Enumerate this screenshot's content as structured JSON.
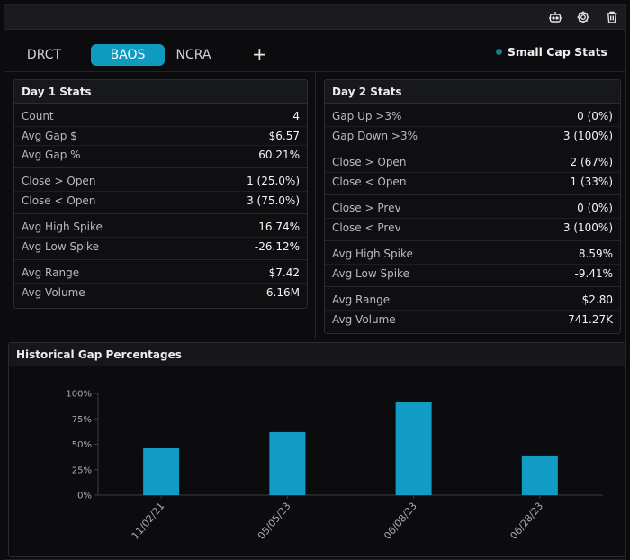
{
  "tabs": [
    "DRCT",
    "BAOS",
    "NCRA"
  ],
  "active_tab": "BAOS",
  "add_tab_label": "+",
  "scanner_label": "Small Cap Stats",
  "colors": {
    "accent": "#0f9ac0",
    "bar": "#129bc4",
    "status_dot": "#1d7a8a"
  },
  "icons": {
    "robot": "robot-icon",
    "settings": "gear-icon",
    "delete": "trash-icon"
  },
  "day1": {
    "title": "Day 1 Stats",
    "groups": [
      [
        {
          "label": "Count",
          "value": "4"
        },
        {
          "label": "Avg Gap $",
          "value": "$6.57"
        },
        {
          "label": "Avg Gap %",
          "value": "60.21%"
        }
      ],
      [
        {
          "label": "Close > Open",
          "value": "1 (25.0%)"
        },
        {
          "label": "Close < Open",
          "value": "3 (75.0%)"
        }
      ],
      [
        {
          "label": "Avg High Spike",
          "value": "16.74%"
        },
        {
          "label": "Avg Low Spike",
          "value": "-26.12%"
        }
      ],
      [
        {
          "label": "Avg Range",
          "value": "$7.42"
        },
        {
          "label": "Avg Volume",
          "value": "6.16M"
        }
      ]
    ]
  },
  "day2": {
    "title": "Day 2 Stats",
    "groups": [
      [
        {
          "label": "Gap Up >3%",
          "value": "0 (0%)"
        },
        {
          "label": "Gap Down >3%",
          "value": "3 (100%)"
        }
      ],
      [
        {
          "label": "Close > Open",
          "value": "2 (67%)"
        },
        {
          "label": "Close < Open",
          "value": "1 (33%)"
        }
      ],
      [
        {
          "label": "Close > Prev",
          "value": "0 (0%)"
        },
        {
          "label": "Close < Prev",
          "value": "3 (100%)"
        }
      ],
      [
        {
          "label": "Avg High Spike",
          "value": "8.59%"
        },
        {
          "label": "Avg Low Spike",
          "value": "-9.41%"
        }
      ],
      [
        {
          "label": "Avg Range",
          "value": "$2.80"
        },
        {
          "label": "Avg Volume",
          "value": "741.27K"
        }
      ]
    ]
  },
  "chart_panel_title": "Historical Gap Percentages",
  "chart_data": {
    "type": "bar",
    "title": "",
    "categories": [
      "11/02/21",
      "05/05/23",
      "06/08/23",
      "06/28/23"
    ],
    "values": [
      46,
      62,
      92,
      39
    ],
    "ylim": [
      0,
      100
    ],
    "yticks": [
      "0%",
      "25%",
      "50%",
      "75%",
      "100%"
    ],
    "grid": false,
    "legend": "none",
    "xlabel": "",
    "ylabel": ""
  }
}
